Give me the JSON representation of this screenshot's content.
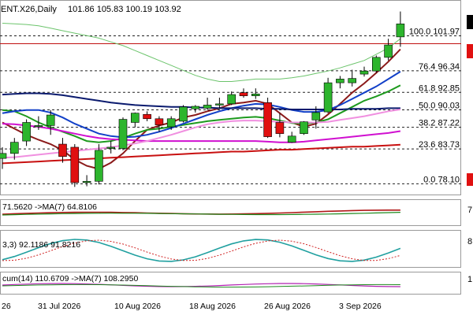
{
  "header": {
    "symbol": "ENT.X26,Daily",
    "ohlc": "101.86 105.83 100.19 103.92"
  },
  "colors": {
    "bull": "#2db52d",
    "bear": "#e01010",
    "ma_fast": "#8b1a1a",
    "ma_green": "#1e9a1e",
    "ma_blue": "#1240c8",
    "ma_navy": "#0a1a6e",
    "ma_magenta": "#d010d0",
    "ma_pink": "#f090e0",
    "ma_red_long": "#c81010",
    "ma_thin_green": "#6cc46c",
    "fib_line": "#202020",
    "resistance": "#c01010"
  },
  "fib_labels": [
    "100.0 101.97",
    "76.4 96.34",
    "61.8 92.85",
    "50.0 90.03",
    "38.2 87.22",
    "23.6 83.73",
    "0.0 78.10"
  ],
  "panels": {
    "rsi_label": "71.5620 ->MA(7) 64.8106",
    "stoch_label": "3,3) 92.1186 91.8216",
    "mom_label": "cum(14) 110.6709 ->MA(7) 108.2950"
  },
  "x_axis_labels": [
    "26",
    "31 Jul 2026",
    "10 Aug 2026",
    "18 Aug 2026",
    "26 Aug 2026",
    "3 Sep 2026"
  ],
  "chart_data": {
    "type": "candlestick",
    "title": "ENT.X26,Daily",
    "y_range": [
      76.5,
      107.5
    ],
    "fibonacci": [
      {
        "level": 100.0,
        "price": 101.97
      },
      {
        "level": 76.4,
        "price": 96.34
      },
      {
        "level": 61.8,
        "price": 92.85
      },
      {
        "level": 50.0,
        "price": 90.03
      },
      {
        "level": 38.2,
        "price": 87.22
      },
      {
        "level": 23.6,
        "price": 83.73
      },
      {
        "level": 0.0,
        "price": 78.1
      }
    ],
    "resistance": 100.7,
    "candles": [
      {
        "o": 82.2,
        "h": 84.0,
        "l": 80.5,
        "c": 83.0
      },
      {
        "o": 83.0,
        "h": 85.5,
        "l": 82.0,
        "c": 84.8
      },
      {
        "o": 85.0,
        "h": 88.5,
        "l": 84.2,
        "c": 88.0
      },
      {
        "o": 87.5,
        "h": 89.0,
        "l": 86.8,
        "c": 87.5
      },
      {
        "o": 87.5,
        "h": 90.0,
        "l": 86.0,
        "c": 89.2
      },
      {
        "o": 84.5,
        "h": 85.5,
        "l": 81.5,
        "c": 82.5
      },
      {
        "o": 84.0,
        "h": 84.5,
        "l": 77.6,
        "c": 78.3
      },
      {
        "o": 78.3,
        "h": 79.5,
        "l": 77.7,
        "c": 78.5
      },
      {
        "o": 78.5,
        "h": 84.5,
        "l": 78.0,
        "c": 83.5
      },
      {
        "o": 83.8,
        "h": 85.0,
        "l": 83.0,
        "c": 84.0
      },
      {
        "o": 83.8,
        "h": 88.8,
        "l": 83.5,
        "c": 88.5
      },
      {
        "o": 88.0,
        "h": 89.6,
        "l": 87.2,
        "c": 89.5
      },
      {
        "o": 89.3,
        "h": 89.8,
        "l": 88.2,
        "c": 88.6
      },
      {
        "o": 88.6,
        "h": 89.0,
        "l": 86.5,
        "c": 87.6
      },
      {
        "o": 87.3,
        "h": 89.0,
        "l": 86.8,
        "c": 88.6
      },
      {
        "o": 88.2,
        "h": 90.8,
        "l": 88.0,
        "c": 90.5
      },
      {
        "o": 90.2,
        "h": 90.8,
        "l": 89.6,
        "c": 90.6
      },
      {
        "o": 90.3,
        "h": 92.0,
        "l": 90.0,
        "c": 90.8
      },
      {
        "o": 90.8,
        "h": 92.0,
        "l": 90.2,
        "c": 91.0
      },
      {
        "o": 91.0,
        "h": 93.0,
        "l": 90.8,
        "c": 92.5
      },
      {
        "o": 92.8,
        "h": 93.5,
        "l": 92.0,
        "c": 92.3
      },
      {
        "o": 92.3,
        "h": 93.5,
        "l": 91.8,
        "c": 92.6
      },
      {
        "o": 91.2,
        "h": 92.0,
        "l": 85.5,
        "c": 85.7
      },
      {
        "o": 88.0,
        "h": 89.5,
        "l": 85.6,
        "c": 86.2
      },
      {
        "o": 84.8,
        "h": 86.5,
        "l": 84.7,
        "c": 85.8
      },
      {
        "o": 86.2,
        "h": 88.2,
        "l": 86.0,
        "c": 88.1
      },
      {
        "o": 88.4,
        "h": 90.6,
        "l": 87.0,
        "c": 89.6
      },
      {
        "o": 89.7,
        "h": 95.2,
        "l": 89.5,
        "c": 94.4
      },
      {
        "o": 94.4,
        "h": 95.5,
        "l": 93.5,
        "c": 95.0
      },
      {
        "o": 94.4,
        "h": 96.5,
        "l": 93.8,
        "c": 95.1
      },
      {
        "o": 95.8,
        "h": 97.0,
        "l": 95.4,
        "c": 96.3
      },
      {
        "o": 96.3,
        "h": 98.8,
        "l": 96.0,
        "c": 98.5
      },
      {
        "o": 98.5,
        "h": 101.5,
        "l": 98.0,
        "c": 100.5
      },
      {
        "o": 101.8,
        "h": 105.9,
        "l": 100.2,
        "c": 103.9
      }
    ],
    "moving_averages": [
      {
        "color_key": "ma_fast",
        "values": [
          88.0,
          87.0,
          86.0,
          85.2,
          84.5,
          83.5,
          82.0,
          81.0,
          80.5,
          81.5,
          83.0,
          85.0,
          86.8,
          87.5,
          88.0,
          88.8,
          89.2,
          89.8,
          90.3,
          91.0,
          91.2,
          91.5,
          91.0,
          89.5,
          88.0,
          87.3,
          87.8,
          89.3,
          91.0,
          92.8,
          94.3,
          96.0,
          97.8,
          99.8
        ]
      },
      {
        "color_key": "ma_green",
        "values": [
          90.0,
          89.8,
          89.0,
          88.0,
          87.2,
          86.5,
          85.8,
          85.0,
          84.8,
          85.0,
          85.5,
          86.2,
          86.8,
          87.0,
          87.3,
          87.6,
          87.9,
          88.2,
          88.4,
          88.6,
          88.8,
          88.9,
          88.7,
          88.3,
          87.9,
          87.8,
          88.0,
          88.5,
          89.5,
          90.5,
          91.5,
          92.2,
          93.0,
          94.0
        ]
      },
      {
        "color_key": "ma_blue",
        "values": [
          89.5,
          89.8,
          90.0,
          90.0,
          89.6,
          88.8,
          87.8,
          87.0,
          86.2,
          85.8,
          85.6,
          85.7,
          86.0,
          86.5,
          87.1,
          87.8,
          88.5,
          89.2,
          89.8,
          90.3,
          90.7,
          91.0,
          90.9,
          90.5,
          90.0,
          89.7,
          89.7,
          90.0,
          90.8,
          91.8,
          92.8,
          93.8,
          95.0,
          96.2
        ]
      },
      {
        "color_key": "ma_navy",
        "values": [
          92.5,
          92.6,
          92.7,
          92.7,
          92.6,
          92.4,
          92.1,
          91.8,
          91.5,
          91.2,
          91.0,
          90.8,
          90.7,
          90.6,
          90.5,
          90.5,
          90.4,
          90.4,
          90.3,
          90.3,
          90.3,
          90.3,
          90.2,
          90.2,
          90.1,
          90.1,
          90.1,
          90.1,
          90.1,
          90.2,
          90.2,
          90.2,
          90.3,
          90.3
        ]
      },
      {
        "color_key": "ma_magenta",
        "values": [
          87.8,
          87.7,
          87.5,
          87.3,
          87.0,
          86.6,
          86.2,
          85.8,
          85.5,
          85.3,
          85.2,
          85.1,
          85.0,
          85.0,
          85.0,
          85.0,
          85.0,
          85.0,
          85.0,
          85.0,
          85.0,
          85.0,
          84.9,
          84.8,
          84.8,
          84.9,
          85.1,
          85.3,
          85.5,
          85.7,
          85.9,
          86.1,
          86.3,
          86.6
        ]
      },
      {
        "color_key": "ma_pink",
        "values": [
          82.3,
          82.4,
          82.6,
          82.8,
          83.0,
          83.2,
          83.4,
          83.6,
          83.8,
          84.0,
          84.3,
          84.6,
          85.0,
          85.5,
          86.0,
          86.6,
          87.2,
          87.7,
          88.0,
          88.2,
          88.3,
          88.3,
          88.2,
          88.1,
          88.0,
          88.0,
          88.0,
          88.1,
          88.4,
          88.7,
          89.0,
          89.4,
          89.8,
          90.1
        ]
      },
      {
        "color_key": "ma_red_long",
        "values": [
          81.4,
          81.5,
          81.6,
          81.7,
          81.8,
          81.9,
          82.0,
          82.1,
          82.2,
          82.3,
          82.4,
          82.5,
          82.6,
          82.7,
          82.8,
          82.9,
          83.0,
          83.1,
          83.2,
          83.3,
          83.3,
          83.4,
          83.5,
          83.6,
          83.6,
          83.7,
          83.8,
          83.9,
          84.0,
          84.1,
          84.1,
          84.2,
          84.3,
          84.4
        ]
      },
      {
        "color_key": "ma_thin_green",
        "values": [
          104.0,
          103.9,
          103.8,
          103.6,
          103.2,
          102.8,
          102.4,
          102.0,
          101.6,
          101.0,
          100.4,
          99.6,
          98.8,
          98.0,
          97.2,
          96.4,
          95.6,
          95.0,
          94.6,
          94.6,
          94.8,
          95.0,
          95.0,
          95.0,
          95.2,
          95.5,
          95.9,
          96.3,
          96.8,
          97.4,
          98.0,
          99.0,
          100.0,
          101.5
        ]
      }
    ],
    "rsi": {
      "value": 71.562,
      "ma7": 64.8106
    },
    "stochastic": {
      "k": 92.1186,
      "d": 91.8216
    },
    "momentum": {
      "value": 110.6709,
      "ma7": 108.295
    }
  }
}
